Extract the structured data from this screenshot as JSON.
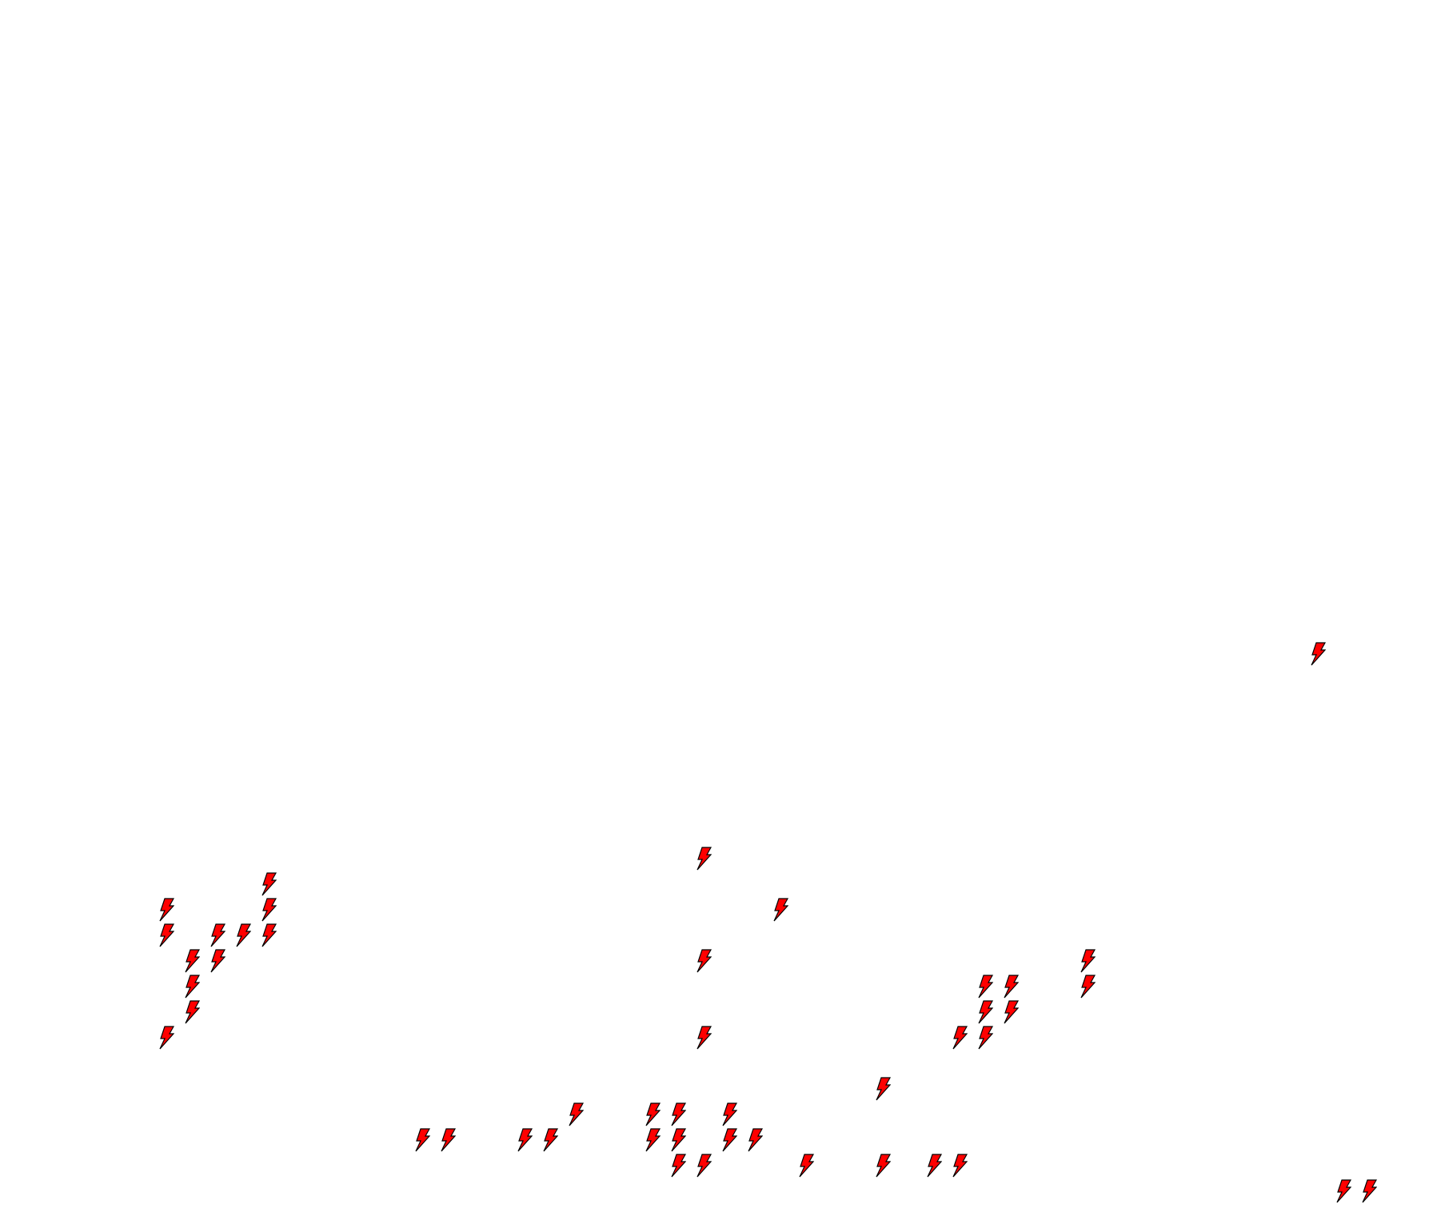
{
  "canvas": {
    "background": "#ffffff",
    "marker_icon": "lightning-bolt-icon",
    "marker_fill": "#ff0000",
    "marker_stroke": "#000000"
  }
}
